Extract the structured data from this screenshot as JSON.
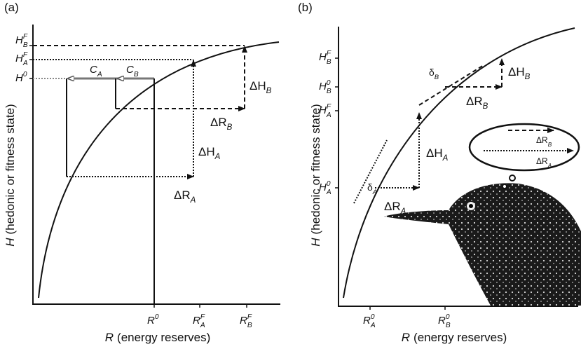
{
  "panels": [
    {
      "tag": "(a)",
      "y_axis_label": {
        "symbol": "H",
        "text": "(hedonic or fitness state)"
      },
      "x_axis_label": {
        "symbol": "R",
        "text": "(energy reserves)"
      },
      "y_ticks": [
        {
          "base": "H",
          "sup": "F",
          "sub": "B"
        },
        {
          "base": "H",
          "sup": "F",
          "sub": "A"
        },
        {
          "base": "H",
          "sup": "0"
        }
      ],
      "x_ticks": [
        {
          "base": "R",
          "sup": "0"
        },
        {
          "base": "R",
          "sup": "F",
          "sub": "A"
        },
        {
          "base": "R",
          "sup": "F",
          "sub": "B"
        }
      ],
      "annotations": [
        {
          "base": "C",
          "sub": "A"
        },
        {
          "base": "C",
          "sub": "B"
        },
        {
          "base": "ΔH",
          "sub": "B"
        },
        {
          "base": "ΔR",
          "sub": "B"
        },
        {
          "base": "ΔH",
          "sub": "A"
        },
        {
          "base": "ΔR",
          "sub": "A"
        }
      ]
    },
    {
      "tag": "(b)",
      "y_axis_label": {
        "symbol": "H",
        "text": "(hedonic or fitness state)"
      },
      "x_axis_label": {
        "symbol": "R",
        "text": "(energy reserves)"
      },
      "y_ticks": [
        {
          "base": "H",
          "sup": "F",
          "sub": "B"
        },
        {
          "base": "H",
          "sup": "0",
          "sub": "B"
        },
        {
          "base": "H",
          "sup": "F",
          "sub": "A"
        },
        {
          "base": "H",
          "sup": "0",
          "sub": "A"
        }
      ],
      "x_ticks": [
        {
          "base": "R",
          "sup": "0",
          "sub": "A"
        },
        {
          "base": "R",
          "sup": "0",
          "sub": "B"
        }
      ],
      "annotations": [
        {
          "base": "δ",
          "sub": "B"
        },
        {
          "base": "ΔH",
          "sub": "B"
        },
        {
          "base": "ΔR",
          "sub": "B"
        },
        {
          "base": "ΔH",
          "sub": "A"
        },
        {
          "base": "ΔR",
          "sub": "A"
        },
        {
          "base": "δ",
          "sub": "A"
        },
        {
          "base": "ΔR",
          "sub": "B"
        },
        {
          "base": "ΔR",
          "sub": "A"
        }
      ]
    }
  ]
}
